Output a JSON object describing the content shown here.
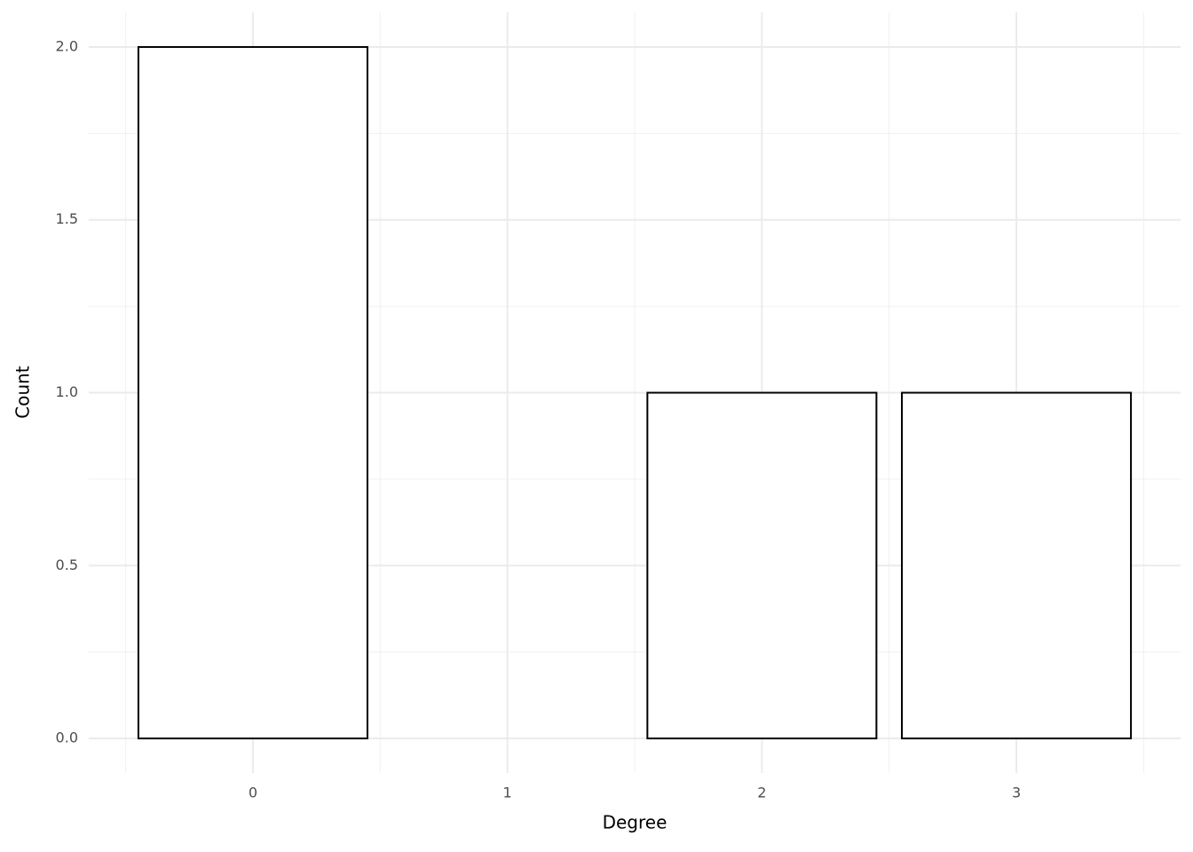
{
  "chart_data": {
    "type": "bar",
    "x_label": "Degree",
    "y_label": "Count",
    "x": [
      0,
      2,
      3
    ],
    "values": [
      2,
      1,
      1
    ],
    "color": "#ffffff",
    "edge_color": "#000000",
    "xlim": [
      -0.645,
      3.645
    ],
    "xticks": [
      0,
      1,
      2,
      3
    ],
    "x_minor_grid": [
      -0.5,
      0.5,
      1.5,
      2.5,
      3.5
    ],
    "ylim": [
      -0.1,
      2.1
    ],
    "yticks": [
      {
        "value": 0,
        "label": "0.0"
      },
      {
        "value": 0.5,
        "label": "0.5"
      },
      {
        "value": 1,
        "label": "1.0"
      },
      {
        "value": 1.5,
        "label": "1.5"
      },
      {
        "value": 2,
        "label": "2.0"
      }
    ],
    "y_minor_grid": [
      0.25,
      0.75,
      1.25,
      1.75
    ],
    "grid": true
  }
}
